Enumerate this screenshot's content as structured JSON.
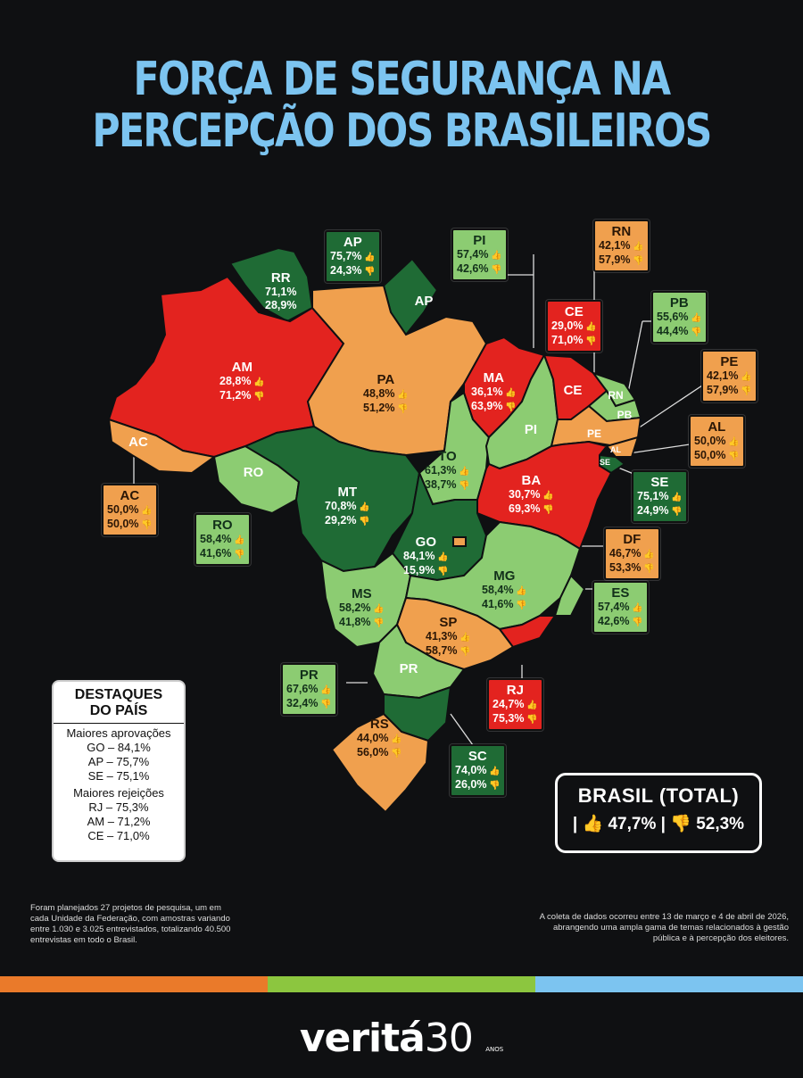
{
  "title_line1": "FORÇA DE SEGURANÇA NA",
  "title_line2": "PERCEPÇÃO DOS BRASILEIROS",
  "colors": {
    "dark_green": "#1f6b35",
    "light_green": "#8ccc72",
    "orange": "#f0a04e",
    "red": "#e3231f",
    "title": "#7cc4f0"
  },
  "states": [
    {
      "uf": "RR",
      "approve": "71,1%",
      "reject": "28,9%"
    },
    {
      "uf": "AP",
      "approve": "75,7%",
      "reject": "24,3%"
    },
    {
      "uf": "AM",
      "approve": "28,8%",
      "reject": "71,2%"
    },
    {
      "uf": "PA",
      "approve": "48,8%",
      "reject": "51,2%"
    },
    {
      "uf": "AC",
      "approve": "50,0%",
      "reject": "50,0%"
    },
    {
      "uf": "RO",
      "approve": "58,4%",
      "reject": "41,6%"
    },
    {
      "uf": "MT",
      "approve": "70,8%",
      "reject": "29,2%"
    },
    {
      "uf": "TO",
      "approve": "61,3%",
      "reject": "38,7%"
    },
    {
      "uf": "MA",
      "approve": "36,1%",
      "reject": "63,9%"
    },
    {
      "uf": "PI",
      "approve": "57,4%",
      "reject": "42,6%"
    },
    {
      "uf": "CE",
      "approve": "29,0%",
      "reject": "71,0%"
    },
    {
      "uf": "RN",
      "approve": "42,1%",
      "reject": "57,9%"
    },
    {
      "uf": "PB",
      "approve": "55,6%",
      "reject": "44,4%"
    },
    {
      "uf": "PE",
      "approve": "42,1%",
      "reject": "57,9%"
    },
    {
      "uf": "AL",
      "approve": "50,0%",
      "reject": "50,0%"
    },
    {
      "uf": "SE",
      "approve": "75,1%",
      "reject": "24,9%"
    },
    {
      "uf": "BA",
      "approve": "30,7%",
      "reject": "69,3%"
    },
    {
      "uf": "GO",
      "approve": "84,1%",
      "reject": "15,9%"
    },
    {
      "uf": "DF",
      "approve": "46,7%",
      "reject": "53,3%"
    },
    {
      "uf": "MS",
      "approve": "58,2%",
      "reject": "41,8%"
    },
    {
      "uf": "MG",
      "approve": "58,4%",
      "reject": "41,6%"
    },
    {
      "uf": "ES",
      "approve": "57,4%",
      "reject": "42,6%"
    },
    {
      "uf": "SP",
      "approve": "41,3%",
      "reject": "58,7%"
    },
    {
      "uf": "RJ",
      "approve": "24,7%",
      "reject": "75,3%"
    },
    {
      "uf": "PR",
      "approve": "67,6%",
      "reject": "32,4%"
    },
    {
      "uf": "SC",
      "approve": "74,0%",
      "reject": "26,0%"
    },
    {
      "uf": "RS",
      "approve": "44,0%",
      "reject": "56,0%"
    }
  ],
  "map_names": {
    "RR": "RR",
    "AP": "AP",
    "AC": "AC",
    "RO": "RO",
    "PI": "PI",
    "CE": "CE",
    "RN": "RN",
    "PB": "PB",
    "PE": "PE",
    "AL": "AL",
    "SE": "SE",
    "PR": "PR"
  },
  "highlights": {
    "title_line1": "DESTAQUES",
    "title_line2": "DO PAÍS",
    "approvals_label": "Maiores aprovações",
    "approvals": [
      "GO – 84,1%",
      "AP – 75,7%",
      "SE – 75,1%"
    ],
    "rejections_label": "Maiores rejeições",
    "rejections": [
      "RJ – 75,3%",
      "AM – 71,2%",
      "CE – 71,0%"
    ]
  },
  "total": {
    "label": "BRASIL (TOTAL)",
    "approve": "47,7%",
    "reject": "52,3%"
  },
  "note_left": "Foram planejados 27 projetos de pesquisa, um em cada Unidade da Federação, com amostras variando entre 1.030 e 3.025 entrevistados, totalizando 40.500 entrevistas em todo o Brasil.",
  "note_right": "A coleta de dados ocorreu entre 13 de março e 4 de abril de 2026, abrangendo uma ampla gama de temas relacionados à gestão pública e à percepção dos eleitores.",
  "logo_text": "veritá",
  "logo_number": "30",
  "logo_sub": "ANOS"
}
